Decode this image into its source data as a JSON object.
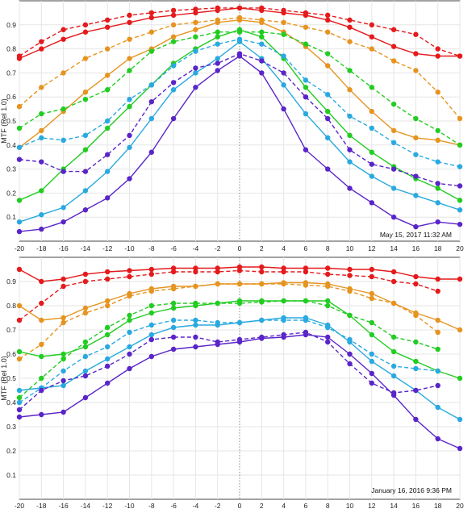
{
  "chart_data": [
    {
      "type": "line",
      "title": "",
      "xlabel": "",
      "ylabel": "MTF (Rel 1.0)",
      "timestamp": "May 15, 2017 11:32 AM",
      "x": [
        -20,
        -18,
        -16,
        -14,
        -12,
        -10,
        -8,
        -6,
        -4,
        -2,
        0,
        2,
        4,
        6,
        8,
        10,
        12,
        14,
        16,
        18,
        20
      ],
      "xlim": [
        -20,
        20
      ],
      "ylim": [
        0,
        1.0
      ],
      "xticks": [
        -20,
        -18,
        -16,
        -14,
        -12,
        -10,
        -8,
        -6,
        -4,
        -2,
        0,
        2,
        4,
        6,
        8,
        10,
        12,
        14,
        16,
        18,
        20
      ],
      "yticks": [
        0.1,
        0.2,
        0.3,
        0.4,
        0.5,
        0.6,
        0.7,
        0.8,
        0.9
      ],
      "grid": true,
      "series": [
        {
          "color": "#e41a1c",
          "dash": false,
          "values": [
            0.76,
            0.8,
            0.84,
            0.87,
            0.89,
            0.91,
            0.93,
            0.94,
            0.95,
            0.96,
            0.97,
            0.96,
            0.95,
            0.94,
            0.92,
            0.89,
            0.85,
            0.81,
            0.78,
            0.77,
            0.77
          ]
        },
        {
          "color": "#e41a1c",
          "dash": true,
          "values": [
            0.77,
            0.83,
            0.88,
            0.9,
            0.92,
            0.94,
            0.95,
            0.96,
            0.965,
            0.97,
            0.97,
            0.97,
            0.96,
            0.95,
            0.94,
            0.92,
            0.9,
            0.88,
            0.86,
            0.8,
            0.77
          ]
        },
        {
          "color": "#e69420",
          "dash": false,
          "values": [
            0.39,
            0.46,
            0.54,
            0.62,
            0.69,
            0.76,
            0.8,
            0.85,
            0.88,
            0.91,
            0.92,
            0.91,
            0.87,
            0.81,
            0.73,
            0.63,
            0.54,
            0.46,
            0.43,
            0.42,
            0.4
          ]
        },
        {
          "color": "#e69420",
          "dash": true,
          "values": [
            0.56,
            0.64,
            0.7,
            0.76,
            0.8,
            0.84,
            0.87,
            0.9,
            0.91,
            0.92,
            0.93,
            0.92,
            0.91,
            0.89,
            0.87,
            0.83,
            0.8,
            0.75,
            0.71,
            0.62,
            0.51
          ]
        },
        {
          "color": "#22cc22",
          "dash": false,
          "values": [
            0.17,
            0.21,
            0.3,
            0.38,
            0.47,
            0.56,
            0.65,
            0.74,
            0.8,
            0.85,
            0.88,
            0.85,
            0.76,
            0.64,
            0.54,
            0.44,
            0.37,
            0.31,
            0.26,
            0.22,
            0.17
          ]
        },
        {
          "color": "#22cc22",
          "dash": true,
          "values": [
            0.47,
            0.53,
            0.55,
            0.59,
            0.63,
            0.71,
            0.79,
            0.83,
            0.85,
            0.87,
            0.87,
            0.87,
            0.86,
            0.82,
            0.78,
            0.71,
            0.64,
            0.57,
            0.51,
            0.46,
            0.4
          ]
        },
        {
          "color": "#29a9e0",
          "dash": false,
          "values": [
            0.08,
            0.11,
            0.14,
            0.21,
            0.29,
            0.39,
            0.51,
            0.63,
            0.7,
            0.76,
            0.83,
            0.76,
            0.65,
            0.53,
            0.43,
            0.33,
            0.27,
            0.22,
            0.19,
            0.16,
            0.13
          ]
        },
        {
          "color": "#29a9e0",
          "dash": true,
          "values": [
            0.39,
            0.43,
            0.42,
            0.44,
            0.5,
            0.59,
            0.65,
            0.73,
            0.79,
            0.82,
            0.84,
            0.82,
            0.77,
            0.67,
            0.61,
            0.52,
            0.47,
            0.41,
            0.36,
            0.33,
            0.31
          ]
        },
        {
          "color": "#5a25c8",
          "dash": false,
          "values": [
            0.04,
            0.05,
            0.08,
            0.13,
            0.18,
            0.26,
            0.37,
            0.51,
            0.64,
            0.71,
            0.77,
            0.7,
            0.55,
            0.38,
            0.3,
            0.22,
            0.16,
            0.1,
            0.06,
            0.08,
            0.07
          ]
        },
        {
          "color": "#5a25c8",
          "dash": true,
          "values": [
            0.34,
            0.33,
            0.29,
            0.29,
            0.36,
            0.44,
            0.58,
            0.66,
            0.72,
            0.74,
            0.78,
            0.75,
            0.7,
            0.6,
            0.51,
            0.38,
            0.32,
            0.3,
            0.27,
            0.24,
            0.23
          ]
        }
      ]
    },
    {
      "type": "line",
      "title": "",
      "xlabel": "",
      "ylabel": "MTF (Rel 1.0)",
      "timestamp": "January 16, 2016  9:36 PM",
      "x": [
        -20,
        -18,
        -16,
        -14,
        -12,
        -10,
        -8,
        -6,
        -4,
        -2,
        0,
        2,
        4,
        6,
        8,
        10,
        12,
        14,
        16,
        18,
        20
      ],
      "xlim": [
        -20,
        20
      ],
      "ylim": [
        0,
        1.0
      ],
      "xticks": [
        -20,
        -18,
        -16,
        -14,
        -12,
        -10,
        -8,
        -6,
        -4,
        -2,
        0,
        2,
        4,
        6,
        8,
        10,
        12,
        14,
        16,
        18,
        20
      ],
      "yticks": [
        0.1,
        0.2,
        0.3,
        0.4,
        0.5,
        0.6,
        0.7,
        0.8,
        0.9
      ],
      "grid": true,
      "series": [
        {
          "color": "#e41a1c",
          "dash": false,
          "values": [
            0.95,
            0.9,
            0.91,
            0.93,
            0.94,
            0.945,
            0.95,
            0.955,
            0.955,
            0.955,
            0.96,
            0.96,
            0.955,
            0.955,
            0.955,
            0.95,
            0.95,
            0.94,
            0.92,
            0.91,
            0.91
          ]
        },
        {
          "color": "#e41a1c",
          "dash": true,
          "values": [
            0.74,
            0.81,
            0.88,
            0.9,
            0.91,
            0.92,
            0.93,
            0.94,
            0.94,
            0.94,
            0.945,
            0.94,
            0.94,
            0.94,
            0.93,
            0.925,
            0.92,
            0.9,
            0.89,
            0.86,
            null
          ]
        },
        {
          "color": "#e69420",
          "dash": false,
          "values": [
            0.8,
            0.74,
            0.75,
            0.79,
            0.82,
            0.85,
            0.87,
            0.88,
            0.88,
            0.89,
            0.89,
            0.89,
            0.895,
            0.895,
            0.89,
            0.87,
            0.85,
            0.81,
            0.77,
            0.74,
            0.7
          ]
        },
        {
          "color": "#e69420",
          "dash": true,
          "values": [
            0.58,
            0.64,
            0.73,
            0.77,
            0.8,
            0.84,
            0.86,
            0.87,
            0.88,
            0.89,
            0.89,
            0.89,
            0.89,
            0.885,
            0.88,
            0.86,
            0.83,
            0.81,
            0.76,
            0.69,
            null
          ]
        },
        {
          "color": "#22cc22",
          "dash": false,
          "values": [
            0.61,
            0.59,
            0.6,
            0.63,
            0.68,
            0.74,
            0.77,
            0.79,
            0.8,
            0.81,
            0.82,
            0.82,
            0.82,
            0.82,
            0.82,
            0.76,
            0.68,
            0.61,
            0.57,
            0.53,
            0.5
          ]
        },
        {
          "color": "#22cc22",
          "dash": true,
          "values": [
            0.42,
            0.5,
            0.58,
            0.65,
            0.71,
            0.76,
            0.8,
            0.81,
            0.81,
            0.81,
            0.81,
            0.815,
            0.82,
            0.82,
            0.8,
            0.76,
            0.73,
            0.67,
            0.65,
            0.62,
            null
          ]
        },
        {
          "color": "#29a9e0",
          "dash": false,
          "values": [
            0.45,
            0.46,
            0.47,
            0.53,
            0.58,
            0.63,
            0.68,
            0.71,
            0.72,
            0.72,
            0.73,
            0.74,
            0.75,
            0.75,
            0.72,
            0.65,
            0.57,
            0.51,
            0.45,
            0.38,
            0.33
          ]
        },
        {
          "color": "#29a9e0",
          "dash": true,
          "values": [
            0.4,
            0.46,
            0.53,
            0.59,
            0.63,
            0.69,
            0.72,
            0.74,
            0.74,
            0.73,
            0.73,
            0.74,
            0.74,
            0.74,
            0.71,
            0.66,
            0.6,
            0.55,
            0.54,
            0.53,
            null
          ]
        },
        {
          "color": "#5a25c8",
          "dash": false,
          "values": [
            0.34,
            0.35,
            0.36,
            0.42,
            0.48,
            0.54,
            0.59,
            0.62,
            0.63,
            0.64,
            0.65,
            0.665,
            0.67,
            0.68,
            0.67,
            0.6,
            0.52,
            0.43,
            0.33,
            0.25,
            0.21
          ]
        },
        {
          "color": "#5a25c8",
          "dash": true,
          "values": [
            0.37,
            0.45,
            0.49,
            0.51,
            0.55,
            0.6,
            0.66,
            0.67,
            0.67,
            0.65,
            0.66,
            0.67,
            0.68,
            0.69,
            0.65,
            0.56,
            0.48,
            0.44,
            0.45,
            0.47,
            null
          ]
        }
      ]
    }
  ]
}
